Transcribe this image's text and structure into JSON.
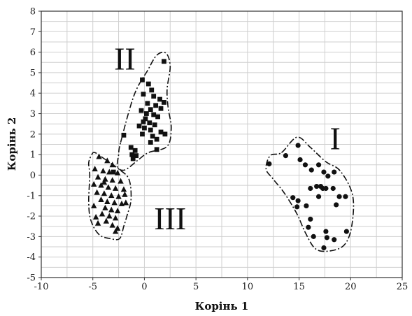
{
  "chart_data": {
    "type": "scatter",
    "title": "",
    "xlabel": "Корінь 1",
    "ylabel": "Корінь 2",
    "xlim": [
      -10,
      25
    ],
    "ylim": [
      -5,
      8
    ],
    "xticks": [
      "-10",
      "-5",
      "0",
      "5",
      "10",
      "15",
      "20",
      "25"
    ],
    "yticks": [
      "-5",
      "-4",
      "-3",
      "-2",
      "-1",
      "0",
      "1",
      "2",
      "3",
      "4",
      "5",
      "6",
      "7",
      "8"
    ],
    "grid": true,
    "series": [
      {
        "marker": "circle",
        "color": "#111111",
        "points": [
          [
            12.1,
            0.55
          ],
          [
            13.7,
            0.95
          ],
          [
            14.9,
            1.45
          ],
          [
            15.1,
            0.75
          ],
          [
            15.6,
            0.5
          ],
          [
            16.2,
            0.25
          ],
          [
            16.9,
            0.5
          ],
          [
            17.4,
            0.15
          ],
          [
            17.8,
            -0.05
          ],
          [
            18.4,
            0.15
          ],
          [
            14.4,
            -1.1
          ],
          [
            14.9,
            -1.25
          ],
          [
            14.8,
            -1.55
          ],
          [
            16.7,
            -0.55
          ],
          [
            17.1,
            -0.55
          ],
          [
            17.3,
            -0.65
          ],
          [
            17.6,
            -0.65
          ],
          [
            18.3,
            -0.65
          ],
          [
            16.1,
            -0.65
          ],
          [
            16.9,
            -1.05
          ],
          [
            18.9,
            -1.05
          ],
          [
            19.5,
            -1.05
          ],
          [
            18.6,
            -1.45
          ],
          [
            16.1,
            -2.15
          ],
          [
            15.9,
            -2.55
          ],
          [
            17.6,
            -2.75
          ],
          [
            17.7,
            -3.05
          ],
          [
            18.4,
            -3.15
          ],
          [
            19.6,
            -2.75
          ],
          [
            16.4,
            -3.0
          ],
          [
            17.4,
            -3.55
          ],
          [
            15.7,
            -1.5
          ]
        ]
      },
      {
        "marker": "square",
        "color": "#111111",
        "points": [
          [
            1.9,
            5.55
          ],
          [
            -0.2,
            4.65
          ],
          [
            0.4,
            4.45
          ],
          [
            0.7,
            4.15
          ],
          [
            -0.1,
            3.95
          ],
          [
            0.9,
            3.85
          ],
          [
            1.5,
            3.7
          ],
          [
            1.9,
            3.55
          ],
          [
            0.3,
            3.5
          ],
          [
            1.1,
            3.4
          ],
          [
            1.6,
            3.25
          ],
          [
            0.6,
            3.2
          ],
          [
            -0.3,
            3.15
          ],
          [
            0.2,
            3.0
          ],
          [
            0.9,
            2.95
          ],
          [
            1.3,
            2.85
          ],
          [
            0.1,
            2.75
          ],
          [
            -0.1,
            2.6
          ],
          [
            0.5,
            2.55
          ],
          [
            1.0,
            2.45
          ],
          [
            -0.5,
            2.4
          ],
          [
            0.0,
            2.3
          ],
          [
            0.6,
            2.2
          ],
          [
            1.6,
            2.1
          ],
          [
            -0.2,
            2.0
          ],
          [
            2.0,
            2.0
          ],
          [
            0.8,
            1.9
          ],
          [
            1.2,
            1.75
          ],
          [
            -2.0,
            1.95
          ],
          [
            0.6,
            1.6
          ],
          [
            -1.3,
            1.35
          ],
          [
            -0.9,
            1.2
          ],
          [
            -1.2,
            1.0
          ],
          [
            -0.8,
            0.95
          ],
          [
            -1.1,
            0.8
          ],
          [
            1.2,
            1.25
          ],
          [
            -3.0,
            0.15
          ]
        ]
      },
      {
        "marker": "triangle",
        "color": "#111111",
        "points": [
          [
            -4.4,
            0.9
          ],
          [
            -3.6,
            0.7
          ],
          [
            -3.1,
            0.5
          ],
          [
            -4.8,
            0.3
          ],
          [
            -4.0,
            0.2
          ],
          [
            -3.4,
            0.15
          ],
          [
            -2.6,
            0.1
          ],
          [
            -4.5,
            -0.1
          ],
          [
            -3.8,
            -0.2
          ],
          [
            -3.1,
            -0.25
          ],
          [
            -2.3,
            -0.3
          ],
          [
            -4.9,
            -0.45
          ],
          [
            -4.2,
            -0.5
          ],
          [
            -3.5,
            -0.6
          ],
          [
            -2.8,
            -0.65
          ],
          [
            -2.0,
            -0.7
          ],
          [
            -4.6,
            -0.85
          ],
          [
            -3.9,
            -0.9
          ],
          [
            -3.2,
            -1.0
          ],
          [
            -2.5,
            -1.05
          ],
          [
            -4.2,
            -1.2
          ],
          [
            -3.6,
            -1.3
          ],
          [
            -2.9,
            -1.35
          ],
          [
            -2.2,
            -1.4
          ],
          [
            -4.9,
            -1.5
          ],
          [
            -3.8,
            -1.6
          ],
          [
            -3.2,
            -1.7
          ],
          [
            -2.6,
            -1.75
          ],
          [
            -4.1,
            -1.9
          ],
          [
            -3.4,
            -2.0
          ],
          [
            -2.8,
            -2.1
          ],
          [
            -3.7,
            -2.25
          ],
          [
            -4.7,
            -2.05
          ],
          [
            -4.5,
            -2.35
          ],
          [
            -3.1,
            -2.45
          ],
          [
            -2.6,
            -2.6
          ],
          [
            -2.8,
            -2.75
          ],
          [
            -1.9,
            -0.95
          ],
          [
            -1.8,
            -1.35
          ],
          [
            -3.9,
            -0.35
          ]
        ]
      }
    ],
    "annotations": [
      {
        "text": "I",
        "x": 18.5,
        "y": 1.8
      },
      {
        "text": "II",
        "x": -1.9,
        "y": 5.7
      },
      {
        "text": "III",
        "x": 2.5,
        "y": -2.1
      }
    ],
    "hulls": [
      [
        [
          13.3,
          1.1
        ],
        [
          14.8,
          1.85
        ],
        [
          16.1,
          1.35
        ],
        [
          17.6,
          0.65
        ],
        [
          19.0,
          0.2
        ],
        [
          20.2,
          -1.0
        ],
        [
          20.1,
          -2.5
        ],
        [
          19.4,
          -3.4
        ],
        [
          18.0,
          -3.7
        ],
        [
          16.6,
          -3.6
        ],
        [
          15.6,
          -2.8
        ],
        [
          14.8,
          -1.9
        ],
        [
          13.6,
          -0.9
        ],
        [
          12.5,
          -0.2
        ],
        [
          11.8,
          0.3
        ],
        [
          12.2,
          0.95
        ]
      ],
      [
        [
          -2.3,
          1.6
        ],
        [
          -1.0,
          3.9
        ],
        [
          0.3,
          5.1
        ],
        [
          1.2,
          5.85
        ],
        [
          2.1,
          5.95
        ],
        [
          2.5,
          5.3
        ],
        [
          2.2,
          4.2
        ],
        [
          2.3,
          3.3
        ],
        [
          2.6,
          2.3
        ],
        [
          2.2,
          1.4
        ],
        [
          0.4,
          1.1
        ],
        [
          -0.7,
          0.7
        ],
        [
          -1.9,
          0.25
        ],
        [
          -2.6,
          0.4
        ],
        [
          -2.5,
          1.0
        ]
      ],
      [
        [
          -5.1,
          1.0
        ],
        [
          -4.8,
          1.1
        ],
        [
          -3.9,
          0.8
        ],
        [
          -2.5,
          0.3
        ],
        [
          -1.5,
          -0.2
        ],
        [
          -1.3,
          -1.2
        ],
        [
          -1.7,
          -2.0
        ],
        [
          -2.0,
          -2.5
        ],
        [
          -2.4,
          -3.1
        ],
        [
          -3.3,
          -3.1
        ],
        [
          -4.4,
          -2.9
        ],
        [
          -5.2,
          -2.2
        ],
        [
          -5.4,
          -1.3
        ],
        [
          -5.3,
          0.0
        ],
        [
          -5.4,
          0.6
        ]
      ]
    ]
  }
}
